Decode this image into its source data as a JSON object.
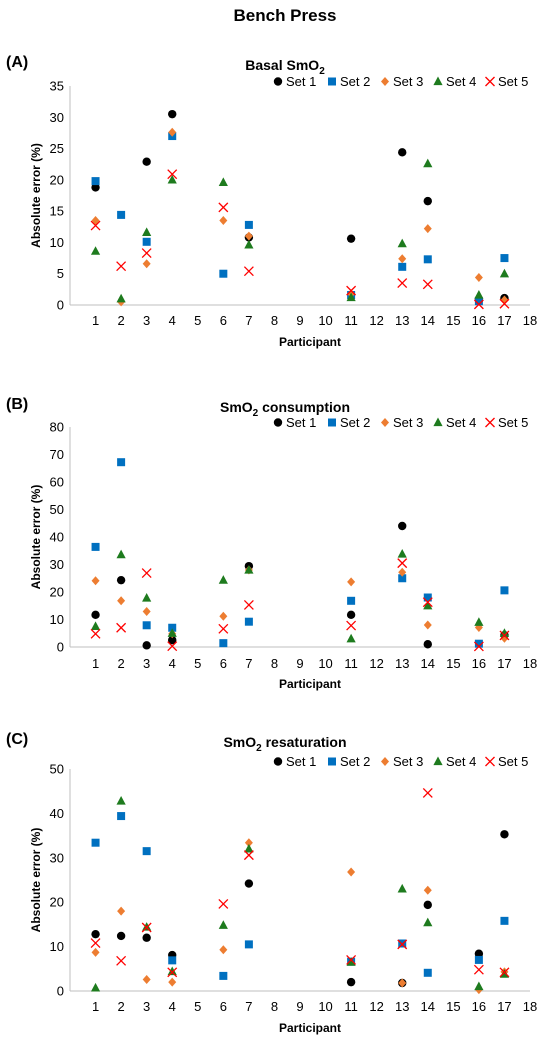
{
  "figure_title": "Bench Press",
  "marker_colors": {
    "Set 1": "#000000",
    "Set 2": "#0070c0",
    "Set 3": "#ed7d31",
    "Set 4": "#1e7b1e",
    "Set 5": "#ff0000"
  },
  "chart_data": [
    {
      "type": "scatter",
      "panel": "(A)",
      "title_main": "Basal SmO",
      "title_sub": "2",
      "title_rest": "",
      "xlabel": "Participant",
      "ylabel": "Absolute error (%)",
      "xlim": [
        0,
        18
      ],
      "ylim": [
        0,
        35
      ],
      "yticks": [
        0,
        5,
        10,
        15,
        20,
        25,
        30,
        35
      ],
      "xticks": [
        1,
        2,
        3,
        4,
        5,
        6,
        7,
        8,
        9,
        10,
        11,
        12,
        13,
        14,
        15,
        16,
        17,
        18
      ],
      "legend_position": "top",
      "series": [
        {
          "name": "Set 1",
          "marker": "circle",
          "x": [
            1,
            3,
            4,
            7,
            11,
            13,
            14,
            16,
            17
          ],
          "y": [
            18.8,
            22.9,
            30.5,
            10.8,
            10.6,
            24.4,
            16.6,
            0.8,
            1.1
          ]
        },
        {
          "name": "Set 2",
          "marker": "square",
          "x": [
            1,
            2,
            3,
            4,
            6,
            7,
            11,
            13,
            14,
            16,
            17
          ],
          "y": [
            19.8,
            14.4,
            10.1,
            27.0,
            5.0,
            12.8,
            1.6,
            6.1,
            7.3,
            0.6,
            7.5
          ]
        },
        {
          "name": "Set 3",
          "marker": "diamond",
          "x": [
            1,
            2,
            3,
            4,
            6,
            7,
            11,
            13,
            14,
            16,
            17
          ],
          "y": [
            13.5,
            0.5,
            6.6,
            27.6,
            13.5,
            11.0,
            1.8,
            7.4,
            12.2,
            4.4,
            0.8
          ]
        },
        {
          "name": "Set 4",
          "marker": "triangle",
          "x": [
            1,
            2,
            3,
            4,
            6,
            7,
            11,
            13,
            14,
            16,
            17
          ],
          "y": [
            8.6,
            1.0,
            11.6,
            20.0,
            19.6,
            9.6,
            1.2,
            9.8,
            22.6,
            1.6,
            5.0
          ]
        },
        {
          "name": "Set 5",
          "marker": "x",
          "x": [
            1,
            2,
            3,
            4,
            6,
            7,
            11,
            13,
            14,
            16,
            17
          ],
          "y": [
            12.7,
            6.2,
            8.3,
            20.9,
            15.6,
            5.4,
            2.3,
            3.5,
            3.3,
            0.1,
            0.2
          ]
        }
      ]
    },
    {
      "type": "scatter",
      "panel": "(B)",
      "title_main": "SmO",
      "title_sub": "2",
      "title_rest": " consumption",
      "xlabel": "Participant",
      "ylabel": "Absolute error (%)",
      "xlim": [
        0,
        18
      ],
      "ylim": [
        0,
        80
      ],
      "yticks": [
        0,
        10,
        20,
        30,
        40,
        50,
        60,
        70,
        80
      ],
      "xticks": [
        1,
        2,
        3,
        4,
        5,
        6,
        7,
        8,
        9,
        10,
        11,
        12,
        13,
        14,
        15,
        16,
        17,
        18
      ],
      "legend_position": "top",
      "series": [
        {
          "name": "Set 1",
          "marker": "circle",
          "x": [
            1,
            2,
            3,
            4,
            7,
            11,
            13,
            14,
            17
          ],
          "y": [
            11.7,
            24.3,
            0.6,
            2.5,
            29.4,
            11.7,
            44.0,
            1.0,
            4.3
          ]
        },
        {
          "name": "Set 2",
          "marker": "square",
          "x": [
            1,
            2,
            3,
            4,
            6,
            7,
            11,
            13,
            14,
            16,
            17
          ],
          "y": [
            36.4,
            67.2,
            7.9,
            7.0,
            1.4,
            9.2,
            16.8,
            25.0,
            18.0,
            1.2,
            20.6
          ]
        },
        {
          "name": "Set 3",
          "marker": "diamond",
          "x": [
            1,
            2,
            3,
            4,
            6,
            7,
            11,
            13,
            14,
            16,
            17
          ],
          "y": [
            24.1,
            16.8,
            12.9,
            4.8,
            11.2,
            28.0,
            23.7,
            27.2,
            8.0,
            7.1,
            3.2
          ]
        },
        {
          "name": "Set 4",
          "marker": "triangle",
          "x": [
            1,
            2,
            3,
            4,
            6,
            7,
            11,
            13,
            14,
            16,
            17
          ],
          "y": [
            7.5,
            33.6,
            17.8,
            5.0,
            24.3,
            28.0,
            3.0,
            33.8,
            15.0,
            9.0,
            5.0
          ]
        },
        {
          "name": "Set 5",
          "marker": "x",
          "x": [
            1,
            2,
            3,
            4,
            6,
            7,
            11,
            13,
            14,
            16,
            17
          ],
          "y": [
            4.8,
            7.0,
            26.9,
            0.3,
            6.6,
            15.3,
            7.8,
            30.5,
            16.3,
            0.2,
            4.2
          ]
        }
      ]
    },
    {
      "type": "scatter",
      "panel": "(C)",
      "title_main": "SmO",
      "title_sub": "2",
      "title_rest": " resaturation",
      "xlabel": "Participant",
      "ylabel": "Absolute error (%)",
      "xlim": [
        0,
        18
      ],
      "ylim": [
        0,
        50
      ],
      "yticks": [
        0,
        10,
        20,
        30,
        40,
        50
      ],
      "xticks": [
        1,
        2,
        3,
        4,
        5,
        6,
        7,
        8,
        9,
        10,
        11,
        12,
        13,
        14,
        15,
        16,
        17,
        18
      ],
      "legend_position": "top",
      "series": [
        {
          "name": "Set 1",
          "marker": "circle",
          "x": [
            1,
            2,
            3,
            4,
            7,
            11,
            13,
            14,
            16,
            17
          ],
          "y": [
            12.8,
            12.4,
            12.0,
            8.1,
            24.2,
            2.0,
            1.8,
            19.4,
            8.4,
            35.3
          ]
        },
        {
          "name": "Set 2",
          "marker": "square",
          "x": [
            1,
            2,
            3,
            4,
            6,
            7,
            11,
            13,
            14,
            16,
            17
          ],
          "y": [
            33.4,
            39.4,
            31.5,
            6.9,
            3.4,
            10.5,
            6.6,
            10.7,
            4.1,
            7.0,
            15.8
          ]
        },
        {
          "name": "Set 3",
          "marker": "diamond",
          "x": [
            1,
            2,
            3,
            4,
            6,
            7,
            11,
            13,
            14,
            16,
            17
          ],
          "y": [
            8.7,
            18.0,
            2.6,
            2.0,
            9.3,
            33.4,
            26.8,
            1.8,
            22.7,
            0.3,
            4.3
          ]
        },
        {
          "name": "Set 4",
          "marker": "triangle",
          "x": [
            1,
            2,
            3,
            4,
            6,
            7,
            11,
            13,
            14,
            16,
            17
          ],
          "y": [
            0.7,
            42.8,
            14.4,
            4.4,
            14.8,
            32.0,
            6.5,
            23.0,
            15.4,
            1.0,
            3.8
          ]
        },
        {
          "name": "Set 5",
          "marker": "x",
          "x": [
            1,
            2,
            3,
            4,
            6,
            7,
            11,
            13,
            14,
            16,
            17
          ],
          "y": [
            10.8,
            6.8,
            14.3,
            4.2,
            19.6,
            30.6,
            7.0,
            10.5,
            44.6,
            4.8,
            4.2
          ]
        }
      ]
    }
  ]
}
